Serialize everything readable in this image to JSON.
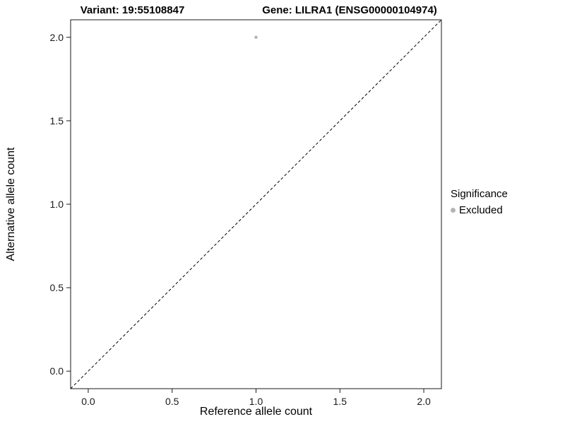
{
  "chart_data": {
    "type": "scatter",
    "title_left": "Variant: 19:55108847",
    "title_right": "Gene: LILRA1 (ENSG00000104974)",
    "xlabel": "Reference allele count",
    "ylabel": "Alternative allele count",
    "xlim": [
      -0.105,
      2.105
    ],
    "ylim": [
      -0.105,
      2.105
    ],
    "x_ticks": [
      0.0,
      0.5,
      1.0,
      1.5,
      2.0
    ],
    "x_tick_labels": [
      "0.0",
      "0.5",
      "1.0",
      "1.5",
      "2.0"
    ],
    "y_ticks": [
      0.0,
      0.5,
      1.0,
      1.5,
      2.0
    ],
    "y_tick_labels": [
      "0.0",
      "0.5",
      "1.0",
      "1.5",
      "2.0"
    ],
    "grid": false,
    "axis_color": "#1a1a1a",
    "tick_label_color": "#1a1a1a",
    "reference_line": {
      "kind": "identity",
      "slope": 1,
      "intercept": 0,
      "style": "dashed",
      "color": "#000000"
    },
    "series": [
      {
        "name": "Excluded",
        "color": "#b5b5b5",
        "points": [
          {
            "x": 1.0,
            "y": 2.0
          }
        ]
      }
    ],
    "legend": {
      "title": "Significance",
      "position": "right",
      "entries": [
        {
          "label": "Excluded",
          "color": "#b5b5b5"
        }
      ]
    }
  }
}
